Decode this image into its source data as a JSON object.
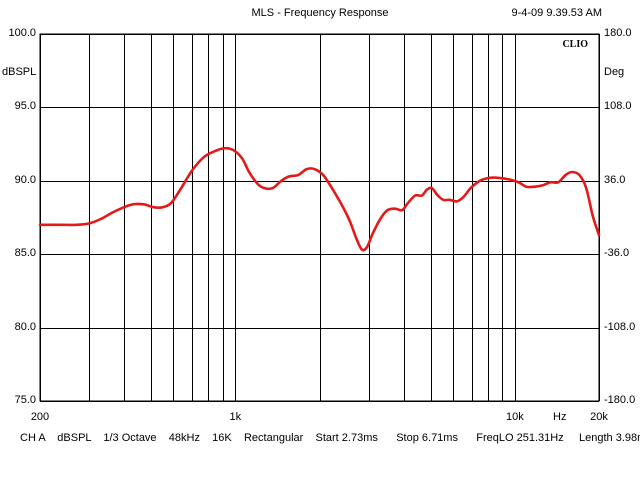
{
  "header": {
    "title": "MLS - Frequency Response",
    "timestamp": "9-4-09 9.39.53 AM"
  },
  "brand": "CLIO",
  "footer": "CH A    dBSPL    1/3 Octave    48kHz    16K    Rectangular    Start 2.73ms      Stop 6.71ms      FreqLO 251.31Hz     Length 3.98ms",
  "colors": {
    "curve": "#e41a1a",
    "grid": "#000000",
    "background": "#ffffff"
  },
  "chart_data": {
    "type": "line",
    "title": "MLS - Frequency Response",
    "x_scale": "log",
    "xlim": [
      200,
      20000
    ],
    "ylim": [
      75,
      100
    ],
    "y2lim": [
      -180,
      180
    ],
    "ylabel": "dBSPL",
    "y2label": "Deg",
    "xlabel": "Hz",
    "x_tick_labels": [
      {
        "value": 200,
        "label": "200"
      },
      {
        "value": 1000,
        "label": "1k"
      },
      {
        "value": 10000,
        "label": "10k"
      },
      {
        "value": 20000,
        "label": "20k"
      }
    ],
    "y_ticks": [
      {
        "value": 100,
        "label": "100.0"
      },
      {
        "value": 95,
        "label": "95.0"
      },
      {
        "value": 90,
        "label": "90.0"
      },
      {
        "value": 85,
        "label": "85.0"
      },
      {
        "value": 80,
        "label": "80.0"
      },
      {
        "value": 75,
        "label": "75.0"
      }
    ],
    "y2_ticks": [
      {
        "value": 180,
        "label": "180.0"
      },
      {
        "value": 108,
        "label": "108.0"
      },
      {
        "value": 36,
        "label": "36.0"
      },
      {
        "value": -36,
        "label": "-36.0"
      },
      {
        "value": -108,
        "label": "-108.0"
      },
      {
        "value": -180,
        "label": "-180.0"
      }
    ],
    "x_gridlines": [
      200,
      300,
      400,
      500,
      600,
      700,
      800,
      900,
      1000,
      2000,
      3000,
      4000,
      5000,
      6000,
      7000,
      8000,
      9000,
      10000,
      20000
    ],
    "grid": true,
    "series": [
      {
        "points": [
          [
            200,
            87.0
          ],
          [
            240,
            87.0
          ],
          [
            270,
            87.0
          ],
          [
            300,
            87.1
          ],
          [
            330,
            87.4
          ],
          [
            360,
            87.8
          ],
          [
            400,
            88.2
          ],
          [
            430,
            88.4
          ],
          [
            470,
            88.4
          ],
          [
            510,
            88.2
          ],
          [
            550,
            88.2
          ],
          [
            590,
            88.5
          ],
          [
            640,
            89.5
          ],
          [
            700,
            90.7
          ],
          [
            770,
            91.6
          ],
          [
            840,
            92.0
          ],
          [
            900,
            92.2
          ],
          [
            950,
            92.2
          ],
          [
            1000,
            92.0
          ],
          [
            1060,
            91.5
          ],
          [
            1120,
            90.6
          ],
          [
            1200,
            89.8
          ],
          [
            1270,
            89.5
          ],
          [
            1360,
            89.5
          ],
          [
            1460,
            90.0
          ],
          [
            1560,
            90.3
          ],
          [
            1680,
            90.4
          ],
          [
            1800,
            90.8
          ],
          [
            1920,
            90.8
          ],
          [
            2060,
            90.4
          ],
          [
            2200,
            89.6
          ],
          [
            2380,
            88.5
          ],
          [
            2560,
            87.3
          ],
          [
            2720,
            86.0
          ],
          [
            2840,
            85.3
          ],
          [
            2960,
            85.5
          ],
          [
            3100,
            86.4
          ],
          [
            3300,
            87.4
          ],
          [
            3500,
            88.0
          ],
          [
            3730,
            88.1
          ],
          [
            3950,
            88.0
          ],
          [
            4150,
            88.5
          ],
          [
            4400,
            89.0
          ],
          [
            4650,
            89.0
          ],
          [
            4850,
            89.4
          ],
          [
            5050,
            89.5
          ],
          [
            5300,
            89.0
          ],
          [
            5550,
            88.7
          ],
          [
            5850,
            88.7
          ],
          [
            6200,
            88.6
          ],
          [
            6550,
            88.9
          ],
          [
            6950,
            89.5
          ],
          [
            7500,
            90.0
          ],
          [
            8100,
            90.2
          ],
          [
            8800,
            90.2
          ],
          [
            9500,
            90.1
          ],
          [
            10300,
            89.9
          ],
          [
            11000,
            89.6
          ],
          [
            11800,
            89.6
          ],
          [
            12600,
            89.7
          ],
          [
            13400,
            89.9
          ],
          [
            14300,
            89.9
          ],
          [
            15200,
            90.4
          ],
          [
            16000,
            90.6
          ],
          [
            17000,
            90.4
          ],
          [
            18000,
            89.5
          ],
          [
            19000,
            87.6
          ],
          [
            20000,
            86.3
          ]
        ]
      }
    ]
  }
}
